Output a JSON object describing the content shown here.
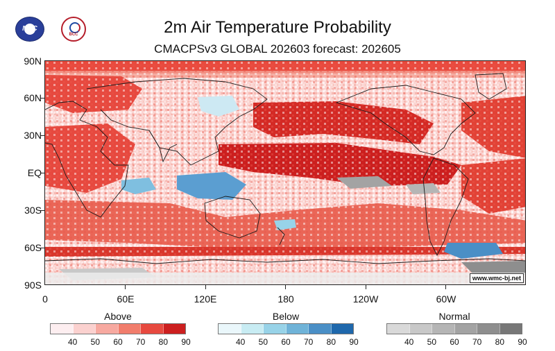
{
  "header": {
    "title": "2m Air Temperature Probability",
    "subtitle": "CMACPSv3 GLOBAL 202603 forecast: 202605",
    "logos": [
      "NCC",
      "BCC"
    ]
  },
  "map": {
    "lat_labels": [
      "90N",
      "60N",
      "30N",
      "EQ",
      "30S",
      "60S",
      "90S"
    ],
    "lon_labels": [
      "0",
      "60E",
      "120E",
      "180",
      "120W",
      "60W"
    ],
    "credit": "www.wmc-bj.net"
  },
  "legend": {
    "groups": [
      {
        "title": "Above",
        "colors": [
          "#fdeef0",
          "#fbd1cf",
          "#f7a9a0",
          "#f17d6c",
          "#e7493f",
          "#cc1f1f"
        ],
        "ticks": [
          "40",
          "50",
          "60",
          "70",
          "80",
          "90"
        ]
      },
      {
        "title": "Below",
        "colors": [
          "#eaf7fb",
          "#c8ecf3",
          "#98d3e8",
          "#6fb3d8",
          "#4a8fc6",
          "#1f68ac"
        ],
        "ticks": [
          "40",
          "50",
          "60",
          "70",
          "80",
          "90"
        ]
      },
      {
        "title": "Normal",
        "colors": [
          "#d9d9d9",
          "#c8c8c8",
          "#b5b5b5",
          "#a3a3a3",
          "#8e8e8e",
          "#777777"
        ],
        "ticks": [
          "40",
          "50",
          "60",
          "70",
          "80",
          "90"
        ]
      }
    ]
  }
}
